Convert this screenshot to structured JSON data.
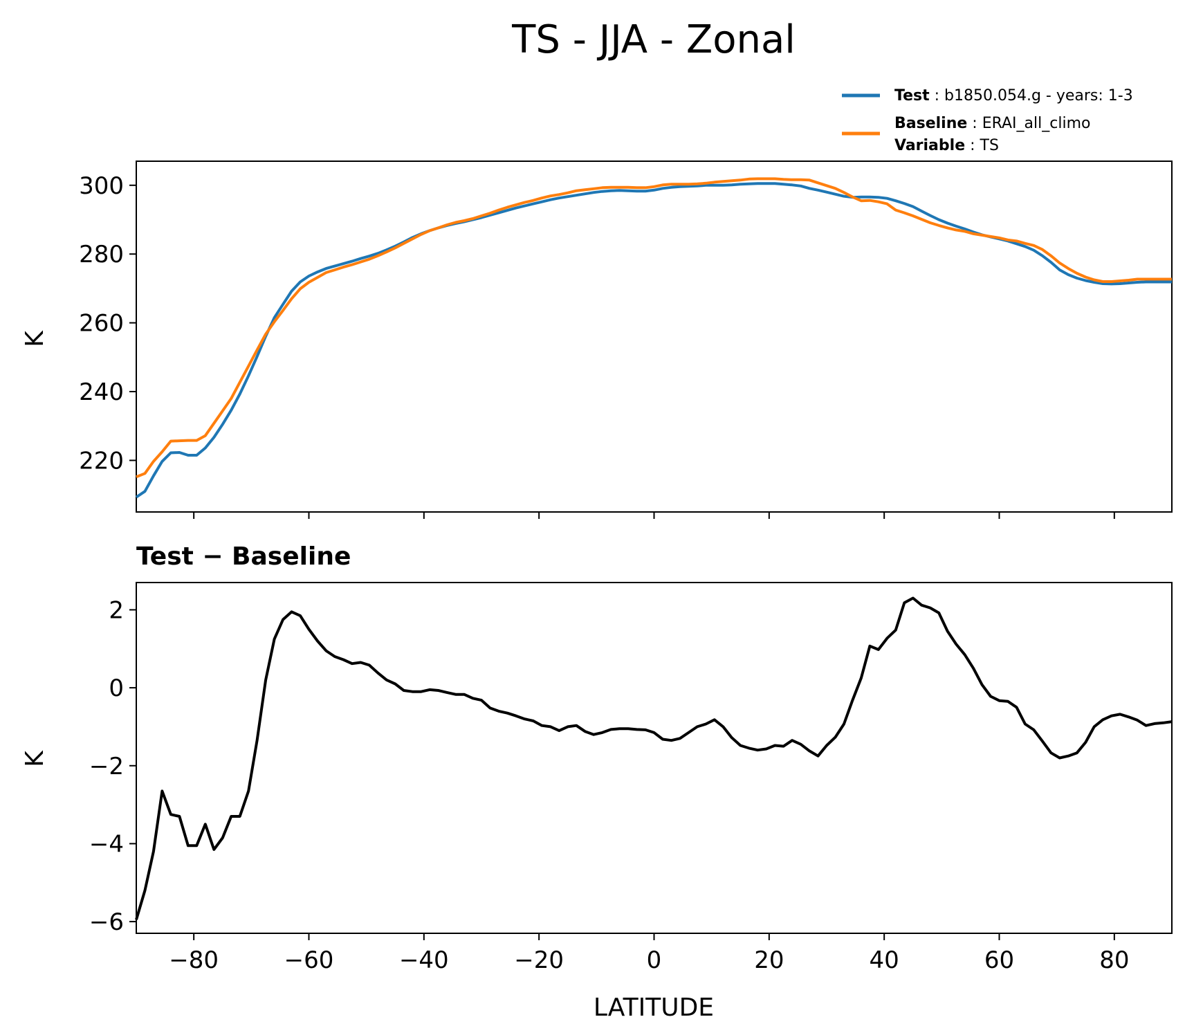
{
  "chart_data": [
    {
      "type": "line",
      "title": "TS - JJA - Zonal",
      "xlabel": "",
      "ylabel": "K",
      "xlim": [
        -90,
        90
      ],
      "ylim": [
        205,
        307
      ],
      "yticks": [
        220,
        240,
        260,
        280,
        300
      ],
      "xticks": [
        -80,
        -60,
        -40,
        -20,
        0,
        20,
        40,
        60,
        80
      ],
      "legend": {
        "position": "top-right",
        "entries": [
          {
            "key": "Test",
            "text": "b1850.054.g - years: 1-3",
            "color": "#1f77b4"
          },
          {
            "key": "Baseline",
            "text": "ERAI_all_climo",
            "color": "#ff7f0e"
          },
          {
            "key": "Variable",
            "text": "TS"
          }
        ]
      },
      "series": [
        {
          "name": "Test",
          "color": "#1f77b4",
          "x": [
            -90,
            -88.5,
            -87,
            -85.5,
            -84,
            -82.5,
            -81,
            -79.5,
            -78,
            -76.5,
            -75,
            -73.5,
            -72,
            -70.5,
            -69,
            -67.5,
            -66,
            -64.5,
            -63,
            -61.5,
            -60,
            -58.5,
            -57,
            -55.5,
            -54,
            -52.5,
            -51,
            -49.5,
            -48,
            -46.5,
            -45,
            -43.5,
            -42,
            -40.5,
            -39,
            -37.5,
            -36,
            -34.5,
            -33,
            -31.5,
            -30,
            -28.5,
            -27,
            -25.5,
            -24,
            -22.5,
            -21,
            -19.5,
            -18,
            -16.5,
            -15,
            -13.5,
            -12,
            -10.5,
            -9,
            -7.5,
            -6,
            -4.5,
            -3,
            -1.5,
            0,
            1.5,
            3,
            4.5,
            6,
            7.5,
            9,
            10.5,
            12,
            13.5,
            15,
            16.5,
            18,
            19.5,
            21,
            22.5,
            24,
            25.5,
            27,
            28.5,
            30,
            31.5,
            33,
            34.5,
            36,
            37.5,
            39,
            40.5,
            42,
            43.5,
            45,
            46.5,
            48,
            49.5,
            51,
            52.5,
            54,
            55.5,
            57,
            58.5,
            60,
            61.5,
            63,
            64.5,
            66,
            67.5,
            69,
            70.5,
            72,
            73.5,
            75,
            76.5,
            78,
            79.5,
            81,
            82.5,
            84,
            85.5,
            87,
            88.5,
            90
          ],
          "values": [
            209.3,
            211.0,
            215.5,
            219.7,
            222.2,
            222.3,
            221.5,
            221.5,
            223.6,
            226.7,
            230.5,
            234.6,
            239.3,
            244.6,
            250.2,
            256.1,
            261.5,
            265.4,
            269.2,
            271.9,
            273.6,
            274.8,
            275.8,
            276.5,
            277.2,
            277.9,
            278.7,
            279.4,
            280.2,
            281.2,
            282.3,
            283.5,
            284.8,
            285.9,
            286.8,
            287.6,
            288.3,
            288.9,
            289.4,
            290.0,
            290.6,
            291.3,
            292.0,
            292.7,
            293.4,
            294.0,
            294.6,
            295.2,
            295.8,
            296.3,
            296.7,
            297.1,
            297.5,
            297.9,
            298.2,
            298.4,
            298.5,
            298.4,
            298.3,
            298.3,
            298.6,
            299.1,
            299.4,
            299.6,
            299.7,
            299.8,
            300.0,
            300.0,
            300.0,
            300.1,
            300.3,
            300.4,
            300.5,
            300.5,
            300.5,
            300.3,
            300.1,
            299.8,
            299.1,
            298.6,
            298.0,
            297.4,
            296.8,
            296.5,
            296.6,
            296.6,
            296.5,
            296.2,
            295.5,
            294.7,
            293.8,
            292.5,
            291.2,
            290.0,
            289.0,
            288.1,
            287.3,
            286.4,
            285.6,
            285.0,
            284.4,
            283.8,
            283.0,
            282.2,
            281.1,
            279.5,
            277.6,
            275.4,
            274.0,
            273.0,
            272.3,
            271.8,
            271.4,
            271.3,
            271.4,
            271.6,
            271.8,
            271.9,
            271.9,
            271.9,
            271.9
          ]
        },
        {
          "name": "Baseline",
          "color": "#ff7f0e",
          "x": [
            -90,
            -88.5,
            -87,
            -85.5,
            -84,
            -82.5,
            -81,
            -79.5,
            -78,
            -76.5,
            -75,
            -73.5,
            -72,
            -70.5,
            -69,
            -67.5,
            -66,
            -64.5,
            -63,
            -61.5,
            -60,
            -58.5,
            -57,
            -55.5,
            -54,
            -52.5,
            -51,
            -49.5,
            -48,
            -46.5,
            -45,
            -43.5,
            -42,
            -40.5,
            -39,
            -37.5,
            -36,
            -34.5,
            -33,
            -31.5,
            -30,
            -28.5,
            -27,
            -25.5,
            -24,
            -22.5,
            -21,
            -19.5,
            -18,
            -16.5,
            -15,
            -13.5,
            -12,
            -10.5,
            -9,
            -7.5,
            -6,
            -4.5,
            -3,
            -1.5,
            0,
            1.5,
            3,
            4.5,
            6,
            7.5,
            9,
            10.5,
            12,
            13.5,
            15,
            16.5,
            18,
            19.5,
            21,
            22.5,
            24,
            25.5,
            27,
            28.5,
            30,
            31.5,
            33,
            34.5,
            36,
            37.5,
            39,
            40.5,
            42,
            43.5,
            45,
            46.5,
            48,
            49.5,
            51,
            52.5,
            54,
            55.5,
            57,
            58.5,
            60,
            61.5,
            63,
            64.5,
            66,
            67.5,
            69,
            70.5,
            72,
            73.5,
            75,
            76.5,
            78,
            79.5,
            81,
            82.5,
            84,
            85.5,
            87,
            88.5,
            90
          ],
          "values": [
            215.2,
            216.2,
            219.7,
            222.5,
            225.6,
            225.7,
            225.8,
            225.8,
            227.2,
            230.8,
            234.4,
            238.0,
            242.7,
            247.4,
            252.1,
            256.7,
            260.3,
            263.6,
            267.0,
            269.9,
            271.8,
            273.2,
            274.6,
            275.4,
            276.2,
            276.9,
            277.7,
            278.5,
            279.5,
            280.6,
            281.8,
            283.1,
            284.4,
            285.7,
            286.8,
            287.6,
            288.5,
            289.2,
            289.7,
            290.3,
            291.1,
            291.9,
            292.8,
            293.6,
            294.3,
            295.0,
            295.6,
            296.3,
            296.9,
            297.3,
            297.8,
            298.4,
            298.7,
            299.0,
            299.3,
            299.4,
            299.4,
            299.4,
            299.3,
            299.3,
            299.6,
            300.1,
            300.3,
            300.3,
            300.3,
            300.4,
            300.6,
            300.9,
            301.1,
            301.3,
            301.5,
            301.8,
            301.9,
            301.9,
            301.9,
            301.7,
            301.6,
            301.6,
            301.5,
            300.7,
            299.9,
            299.1,
            297.9,
            296.6,
            295.5,
            295.6,
            295.2,
            294.6,
            292.8,
            292.0,
            291.1,
            290.1,
            289.1,
            288.3,
            287.6,
            287.0,
            286.6,
            285.9,
            285.5,
            285.1,
            284.7,
            284.1,
            283.8,
            283.1,
            282.5,
            281.3,
            279.5,
            277.4,
            275.8,
            274.4,
            273.3,
            272.5,
            272.0,
            272.0,
            272.2,
            272.4,
            272.7,
            272.7,
            272.7,
            272.7,
            272.7
          ]
        }
      ]
    },
    {
      "type": "line",
      "title": "Test − Baseline",
      "xlabel": "LATITUDE",
      "ylabel": "K",
      "xlim": [
        -90,
        90
      ],
      "ylim": [
        -6.3,
        2.7
      ],
      "yticks": [
        -6,
        -4,
        -2,
        0,
        2
      ],
      "ytick_labels": [
        "−6",
        "−4",
        "−2",
        "0",
        "2"
      ],
      "xticks": [
        -80,
        -60,
        -40,
        -20,
        0,
        20,
        40,
        60,
        80
      ],
      "xtick_labels": [
        "−80",
        "−60",
        "−40",
        "−20",
        "0",
        "20",
        "40",
        "60",
        "80"
      ],
      "series": [
        {
          "name": "Test − Baseline",
          "color": "#000000",
          "x": [
            -90,
            -88.5,
            -87,
            -85.5,
            -84,
            -82.5,
            -81,
            -79.5,
            -78,
            -76.5,
            -75,
            -73.5,
            -72,
            -70.5,
            -69,
            -67.5,
            -66,
            -64.5,
            -63,
            -61.5,
            -60,
            -58.5,
            -57,
            -55.5,
            -54,
            -52.5,
            -51,
            -49.5,
            -48,
            -46.5,
            -45,
            -43.5,
            -42,
            -40.5,
            -39,
            -37.5,
            -36,
            -34.5,
            -33,
            -31.5,
            -30,
            -28.5,
            -27,
            -25.5,
            -24,
            -22.5,
            -21,
            -19.5,
            -18,
            -16.5,
            -15,
            -13.5,
            -12,
            -10.5,
            -9,
            -7.5,
            -6,
            -4.5,
            -3,
            -1.5,
            0,
            1.5,
            3,
            4.5,
            6,
            7.5,
            9,
            10.5,
            12,
            13.5,
            15,
            16.5,
            18,
            19.5,
            21,
            22.5,
            24,
            25.5,
            27,
            28.5,
            30,
            31.5,
            33,
            34.5,
            36,
            37.5,
            39,
            40.5,
            42,
            43.5,
            45,
            46.5,
            48,
            49.5,
            51,
            52.5,
            54,
            55.5,
            57,
            58.5,
            60,
            61.5,
            63,
            64.5,
            66,
            67.5,
            69,
            70.5,
            72,
            73.5,
            75,
            76.5,
            78,
            79.5,
            81,
            82.5,
            84,
            85.5,
            87,
            88.5,
            90
          ],
          "values": [
            -5.95,
            -5.2,
            -4.2,
            -2.65,
            -3.25,
            -3.3,
            -4.05,
            -4.05,
            -3.5,
            -4.15,
            -3.85,
            -3.3,
            -3.3,
            -2.65,
            -1.35,
            0.2,
            1.25,
            1.75,
            1.95,
            1.85,
            1.5,
            1.2,
            0.95,
            0.8,
            0.72,
            0.62,
            0.65,
            0.58,
            0.38,
            0.2,
            0.1,
            -0.07,
            -0.1,
            -0.1,
            -0.05,
            -0.07,
            -0.12,
            -0.17,
            -0.17,
            -0.27,
            -0.32,
            -0.52,
            -0.6,
            -0.65,
            -0.72,
            -0.8,
            -0.85,
            -0.97,
            -1.0,
            -1.1,
            -1.0,
            -0.97,
            -1.12,
            -1.2,
            -1.15,
            -1.07,
            -1.05,
            -1.05,
            -1.07,
            -1.08,
            -1.15,
            -1.32,
            -1.35,
            -1.3,
            -1.15,
            -1.0,
            -0.93,
            -0.82,
            -1.0,
            -1.28,
            -1.48,
            -1.55,
            -1.6,
            -1.57,
            -1.48,
            -1.5,
            -1.35,
            -1.45,
            -1.62,
            -1.75,
            -1.48,
            -1.27,
            -0.93,
            -0.32,
            0.25,
            1.07,
            0.98,
            1.27,
            1.48,
            2.18,
            2.3,
            2.12,
            2.05,
            1.92,
            1.45,
            1.12,
            0.85,
            0.5,
            0.08,
            -0.22,
            -0.33,
            -0.35,
            -0.5,
            -0.93,
            -1.08,
            -1.37,
            -1.67,
            -1.8,
            -1.75,
            -1.67,
            -1.4,
            -1.0,
            -0.82,
            -0.72,
            -0.68,
            -0.75,
            -0.83,
            -0.97,
            -0.92,
            -0.9,
            -0.87
          ]
        }
      ]
    }
  ]
}
